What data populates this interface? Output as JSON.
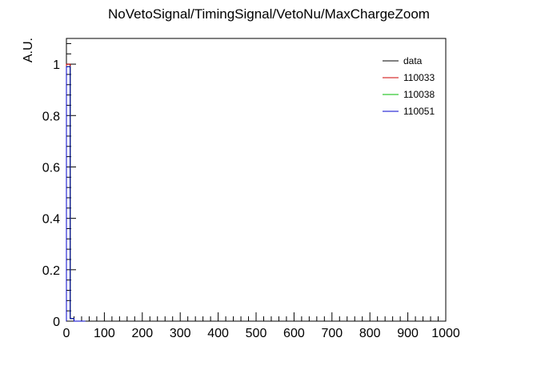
{
  "chart_data": {
    "type": "line",
    "title": "NoVetoSignal/TimingSignal/VetoNu/MaxChargeZoom",
    "xlabel": "",
    "ylabel": "A.U.",
    "xlim": [
      0,
      1000
    ],
    "ylim": [
      0,
      1.1
    ],
    "x_major_ticks": [
      0,
      100,
      200,
      300,
      400,
      500,
      600,
      700,
      800,
      900,
      1000
    ],
    "x_tick_labels": [
      "0",
      "100",
      "200",
      "300",
      "400",
      "500",
      "600",
      "700",
      "800",
      "900",
      "1000"
    ],
    "y_major_ticks": [
      0,
      0.2,
      0.4,
      0.6,
      0.8,
      1.0
    ],
    "y_tick_labels": [
      "0",
      "0.2",
      "0.4",
      "0.6",
      "0.8",
      "1"
    ],
    "grid": false,
    "legend_position": "top-right",
    "bin_edges": [
      0,
      10,
      20,
      30,
      40,
      50
    ],
    "series": [
      {
        "name": "data",
        "color": "#000000",
        "values": [
          1.0,
          0.01,
          0.0,
          0.0,
          0.0
        ]
      },
      {
        "name": "110033",
        "color": "#cc0000",
        "values": [
          1.0,
          0.01,
          0.0,
          0.0,
          0.0
        ]
      },
      {
        "name": "110038",
        "color": "#00bb00",
        "values": [
          0.99,
          0.01,
          0.0,
          0.0,
          0.0
        ]
      },
      {
        "name": "110051",
        "color": "#0000cc",
        "values": [
          0.99,
          0.01,
          0.0,
          0.0,
          0.0
        ]
      }
    ]
  }
}
